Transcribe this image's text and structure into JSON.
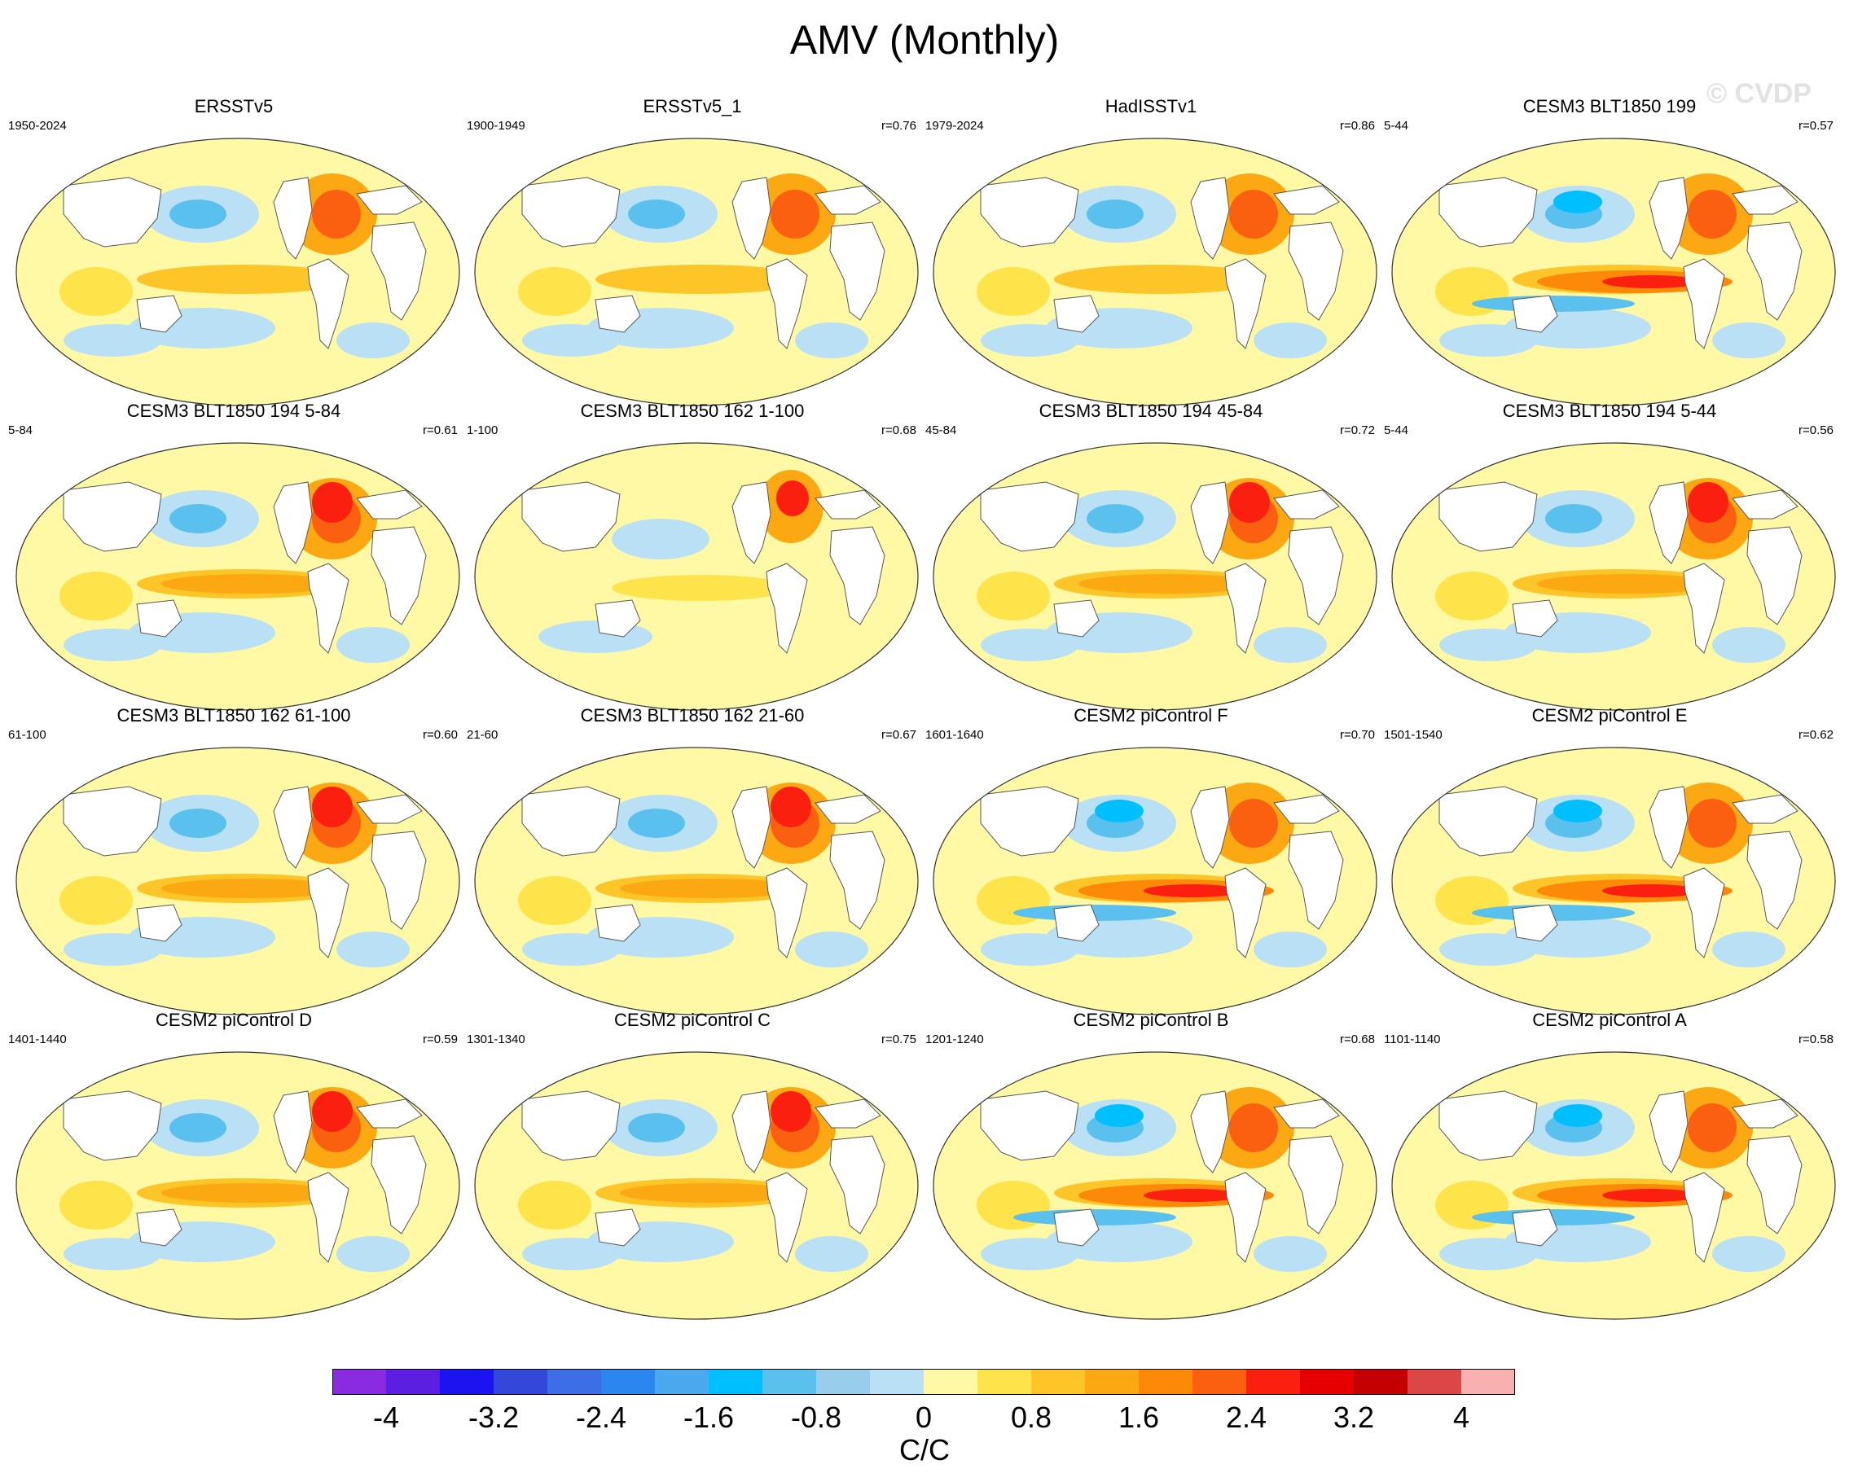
{
  "title": "AMV (Monthly)",
  "watermark": "© CVDP",
  "units": "C/C",
  "colorbar": {
    "labels": [
      "-4",
      "-3.2",
      "-2.4",
      "-1.6",
      "-0.8",
      "0",
      "0.8",
      "1.6",
      "2.4",
      "3.2",
      "4"
    ],
    "colors": [
      "#8a2be2",
      "#5a1fe0",
      "#1b14f0",
      "#3248d8",
      "#3d6ee6",
      "#2b86f0",
      "#4ba8ee",
      "#00bfff",
      "#5ac0ee",
      "#98cdec",
      "#b9e0f5",
      "#fff9a6",
      "#ffe34a",
      "#fdc528",
      "#fca812",
      "#fc8a08",
      "#fb6010",
      "#fb1f10",
      "#e60000",
      "#c40000",
      "#dd4646",
      "#f8b0b0"
    ]
  },
  "panels": [
    {
      "title": "ERSSTv5",
      "years": "1950-2024",
      "r": "",
      "style": "obs"
    },
    {
      "title": "ERSSTv5_1",
      "years": "1900-1949",
      "r": "r=0.76",
      "style": "obs"
    },
    {
      "title": "HadISSTv1",
      "years": "1979-2024",
      "r": "r=0.86",
      "style": "obs"
    },
    {
      "title": "CESM3 BLT1850 199",
      "years": "5-44",
      "r": "r=0.57",
      "style": "strong"
    },
    {
      "title": "CESM3 BLT1850 194 5-84",
      "years": "5-84",
      "r": "r=0.61",
      "style": "model"
    },
    {
      "title": "CESM3 BLT1850 162 1-100",
      "years": "1-100",
      "r": "r=0.68",
      "style": "weak"
    },
    {
      "title": "CESM3 BLT1850 194 45-84",
      "years": "45-84",
      "r": "r=0.72",
      "style": "model"
    },
    {
      "title": "CESM3 BLT1850 194 5-44",
      "years": "5-44",
      "r": "r=0.56",
      "style": "model"
    },
    {
      "title": "CESM3 BLT1850 162 61-100",
      "years": "61-100",
      "r": "r=0.60",
      "style": "model"
    },
    {
      "title": "CESM3 BLT1850 162 21-60",
      "years": "21-60",
      "r": "r=0.67",
      "style": "model"
    },
    {
      "title": "CESM2 piControl F",
      "years": "1601-1640",
      "r": "r=0.70",
      "style": "strong"
    },
    {
      "title": "CESM2 piControl E",
      "years": "1501-1540",
      "r": "r=0.62",
      "style": "strong"
    },
    {
      "title": "CESM2 piControl D",
      "years": "1401-1440",
      "r": "r=0.59",
      "style": "model"
    },
    {
      "title": "CESM2 piControl C",
      "years": "1301-1340",
      "r": "r=0.75",
      "style": "model"
    },
    {
      "title": "CESM2 piControl B",
      "years": "1201-1240",
      "r": "r=0.68",
      "style": "strong"
    },
    {
      "title": "CESM2 piControl A",
      "years": "1101-1140",
      "r": "r=0.58",
      "style": "strong"
    }
  ]
}
